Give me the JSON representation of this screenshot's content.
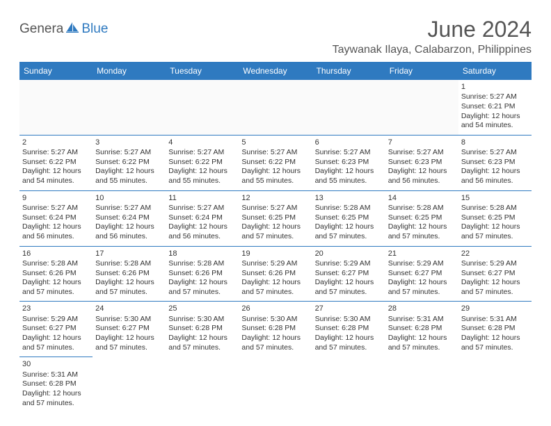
{
  "logo": {
    "text1": "Genera",
    "text2": "Blue",
    "icon_fill": "#2f7ac0"
  },
  "header": {
    "month": "June 2024",
    "location": "Taywanak Ilaya, Calabarzon, Philippines"
  },
  "colors": {
    "header_bg": "#2f7ac0",
    "header_text": "#ffffff",
    "border": "#2f7ac0",
    "text": "#333333"
  },
  "weekdays": [
    "Sunday",
    "Monday",
    "Tuesday",
    "Wednesday",
    "Thursday",
    "Friday",
    "Saturday"
  ],
  "grid": [
    [
      null,
      null,
      null,
      null,
      null,
      null,
      {
        "n": "1",
        "sr": "Sunrise: 5:27 AM",
        "ss": "Sunset: 6:21 PM",
        "d1": "Daylight: 12 hours",
        "d2": "and 54 minutes."
      }
    ],
    [
      {
        "n": "2",
        "sr": "Sunrise: 5:27 AM",
        "ss": "Sunset: 6:22 PM",
        "d1": "Daylight: 12 hours",
        "d2": "and 54 minutes."
      },
      {
        "n": "3",
        "sr": "Sunrise: 5:27 AM",
        "ss": "Sunset: 6:22 PM",
        "d1": "Daylight: 12 hours",
        "d2": "and 55 minutes."
      },
      {
        "n": "4",
        "sr": "Sunrise: 5:27 AM",
        "ss": "Sunset: 6:22 PM",
        "d1": "Daylight: 12 hours",
        "d2": "and 55 minutes."
      },
      {
        "n": "5",
        "sr": "Sunrise: 5:27 AM",
        "ss": "Sunset: 6:22 PM",
        "d1": "Daylight: 12 hours",
        "d2": "and 55 minutes."
      },
      {
        "n": "6",
        "sr": "Sunrise: 5:27 AM",
        "ss": "Sunset: 6:23 PM",
        "d1": "Daylight: 12 hours",
        "d2": "and 55 minutes."
      },
      {
        "n": "7",
        "sr": "Sunrise: 5:27 AM",
        "ss": "Sunset: 6:23 PM",
        "d1": "Daylight: 12 hours",
        "d2": "and 56 minutes."
      },
      {
        "n": "8",
        "sr": "Sunrise: 5:27 AM",
        "ss": "Sunset: 6:23 PM",
        "d1": "Daylight: 12 hours",
        "d2": "and 56 minutes."
      }
    ],
    [
      {
        "n": "9",
        "sr": "Sunrise: 5:27 AM",
        "ss": "Sunset: 6:24 PM",
        "d1": "Daylight: 12 hours",
        "d2": "and 56 minutes."
      },
      {
        "n": "10",
        "sr": "Sunrise: 5:27 AM",
        "ss": "Sunset: 6:24 PM",
        "d1": "Daylight: 12 hours",
        "d2": "and 56 minutes."
      },
      {
        "n": "11",
        "sr": "Sunrise: 5:27 AM",
        "ss": "Sunset: 6:24 PM",
        "d1": "Daylight: 12 hours",
        "d2": "and 56 minutes."
      },
      {
        "n": "12",
        "sr": "Sunrise: 5:27 AM",
        "ss": "Sunset: 6:25 PM",
        "d1": "Daylight: 12 hours",
        "d2": "and 57 minutes."
      },
      {
        "n": "13",
        "sr": "Sunrise: 5:28 AM",
        "ss": "Sunset: 6:25 PM",
        "d1": "Daylight: 12 hours",
        "d2": "and 57 minutes."
      },
      {
        "n": "14",
        "sr": "Sunrise: 5:28 AM",
        "ss": "Sunset: 6:25 PM",
        "d1": "Daylight: 12 hours",
        "d2": "and 57 minutes."
      },
      {
        "n": "15",
        "sr": "Sunrise: 5:28 AM",
        "ss": "Sunset: 6:25 PM",
        "d1": "Daylight: 12 hours",
        "d2": "and 57 minutes."
      }
    ],
    [
      {
        "n": "16",
        "sr": "Sunrise: 5:28 AM",
        "ss": "Sunset: 6:26 PM",
        "d1": "Daylight: 12 hours",
        "d2": "and 57 minutes."
      },
      {
        "n": "17",
        "sr": "Sunrise: 5:28 AM",
        "ss": "Sunset: 6:26 PM",
        "d1": "Daylight: 12 hours",
        "d2": "and 57 minutes."
      },
      {
        "n": "18",
        "sr": "Sunrise: 5:28 AM",
        "ss": "Sunset: 6:26 PM",
        "d1": "Daylight: 12 hours",
        "d2": "and 57 minutes."
      },
      {
        "n": "19",
        "sr": "Sunrise: 5:29 AM",
        "ss": "Sunset: 6:26 PM",
        "d1": "Daylight: 12 hours",
        "d2": "and 57 minutes."
      },
      {
        "n": "20",
        "sr": "Sunrise: 5:29 AM",
        "ss": "Sunset: 6:27 PM",
        "d1": "Daylight: 12 hours",
        "d2": "and 57 minutes."
      },
      {
        "n": "21",
        "sr": "Sunrise: 5:29 AM",
        "ss": "Sunset: 6:27 PM",
        "d1": "Daylight: 12 hours",
        "d2": "and 57 minutes."
      },
      {
        "n": "22",
        "sr": "Sunrise: 5:29 AM",
        "ss": "Sunset: 6:27 PM",
        "d1": "Daylight: 12 hours",
        "d2": "and 57 minutes."
      }
    ],
    [
      {
        "n": "23",
        "sr": "Sunrise: 5:29 AM",
        "ss": "Sunset: 6:27 PM",
        "d1": "Daylight: 12 hours",
        "d2": "and 57 minutes."
      },
      {
        "n": "24",
        "sr": "Sunrise: 5:30 AM",
        "ss": "Sunset: 6:27 PM",
        "d1": "Daylight: 12 hours",
        "d2": "and 57 minutes."
      },
      {
        "n": "25",
        "sr": "Sunrise: 5:30 AM",
        "ss": "Sunset: 6:28 PM",
        "d1": "Daylight: 12 hours",
        "d2": "and 57 minutes."
      },
      {
        "n": "26",
        "sr": "Sunrise: 5:30 AM",
        "ss": "Sunset: 6:28 PM",
        "d1": "Daylight: 12 hours",
        "d2": "and 57 minutes."
      },
      {
        "n": "27",
        "sr": "Sunrise: 5:30 AM",
        "ss": "Sunset: 6:28 PM",
        "d1": "Daylight: 12 hours",
        "d2": "and 57 minutes."
      },
      {
        "n": "28",
        "sr": "Sunrise: 5:31 AM",
        "ss": "Sunset: 6:28 PM",
        "d1": "Daylight: 12 hours",
        "d2": "and 57 minutes."
      },
      {
        "n": "29",
        "sr": "Sunrise: 5:31 AM",
        "ss": "Sunset: 6:28 PM",
        "d1": "Daylight: 12 hours",
        "d2": "and 57 minutes."
      }
    ],
    [
      {
        "n": "30",
        "sr": "Sunrise: 5:31 AM",
        "ss": "Sunset: 6:28 PM",
        "d1": "Daylight: 12 hours",
        "d2": "and 57 minutes."
      },
      null,
      null,
      null,
      null,
      null,
      null
    ]
  ]
}
